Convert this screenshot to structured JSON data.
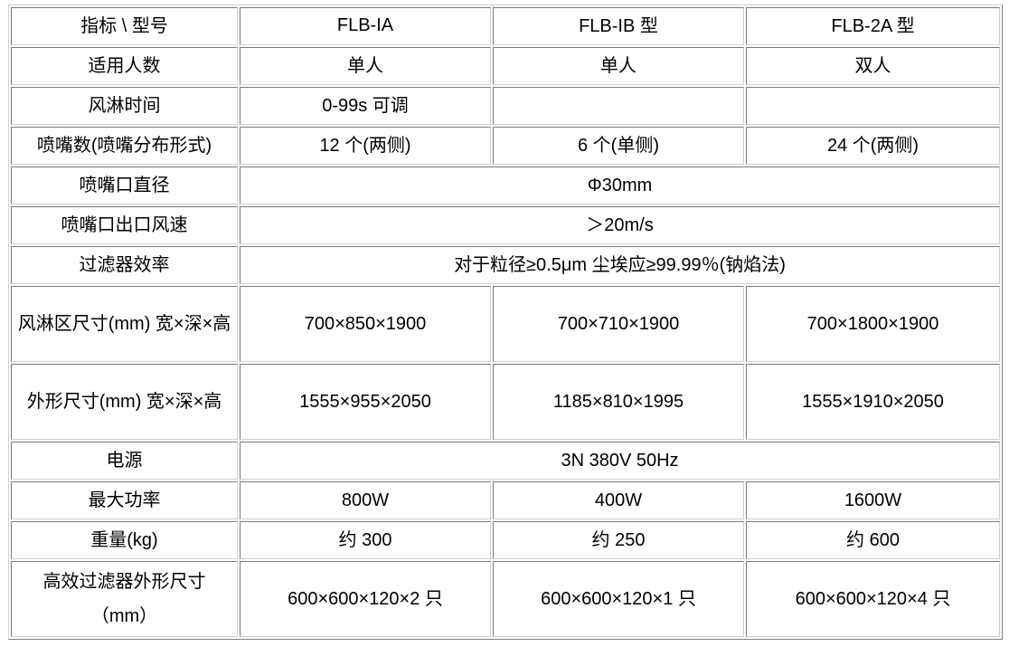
{
  "table": {
    "header": [
      "指标 \\ 型号",
      "FLB-IA",
      "FLB-IB 型",
      "FLB-2A 型"
    ],
    "rows": [
      {
        "label": "适用人数",
        "cells": [
          "单人",
          "单人",
          "双人"
        ]
      },
      {
        "label": "风淋时间",
        "cells": [
          "0-99s 可调",
          "",
          ""
        ]
      },
      {
        "label": "喷嘴数(喷嘴分布形式)",
        "cells": [
          "12 个(两侧)",
          "6 个(单侧)",
          "24 个(两侧)"
        ]
      },
      {
        "label": "喷嘴口直径",
        "span": "Φ30mm"
      },
      {
        "label": "喷嘴口出口风速",
        "span": "＞20m/s"
      },
      {
        "label": "过滤器效率",
        "span": "对于粒径≥0.5μm 尘埃应≥99.99％(钠焰法)"
      },
      {
        "label": "风淋区尺寸(mm) 宽×深×高",
        "cells": [
          "700×850×1900",
          "700×710×1900",
          "700×1800×1900"
        ]
      },
      {
        "label": "外形尺寸(mm) 宽×深×高",
        "cells": [
          "1555×955×2050",
          "1185×810×1995",
          "1555×1910×2050"
        ]
      },
      {
        "label": "电源",
        "span": "3N 380V 50Hz"
      },
      {
        "label": "最大功率",
        "cells": [
          "800W",
          "400W",
          "1600W"
        ]
      },
      {
        "label": "重量(kg)",
        "cells": [
          "约 300",
          "约 250",
          "约 600"
        ]
      },
      {
        "label": "高效过滤器外形尺寸（mm）",
        "cells": [
          "600×600×120×2 只",
          "600×600×120×1 只",
          "600×600×120×4 只"
        ]
      }
    ]
  }
}
